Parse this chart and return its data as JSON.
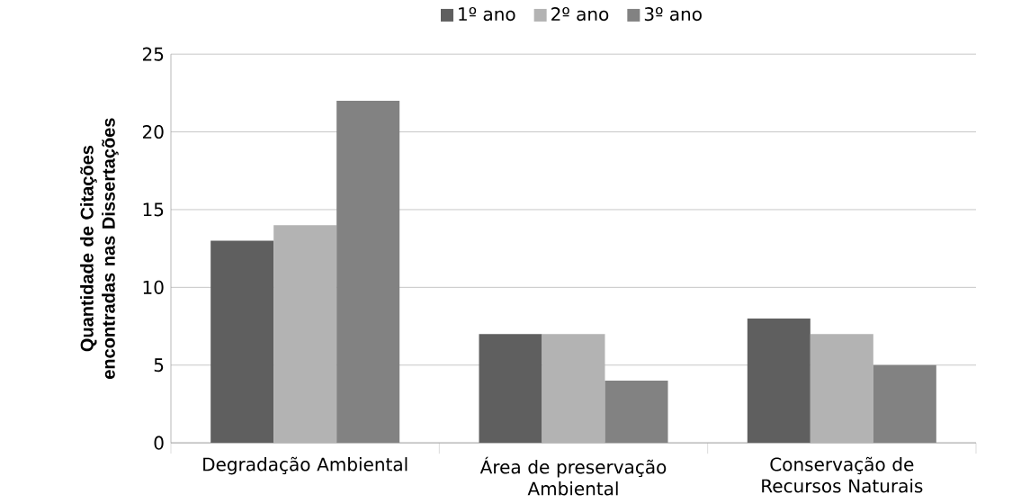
{
  "chart_data": {
    "type": "bar",
    "ylabel": "Quantidade de Citações encontradas nas Dissertações",
    "categories": [
      "Degradação Ambiental",
      "Área de preservação Ambiental",
      "Conservação de Recursos Naturais"
    ],
    "series": [
      {
        "name": "1º ano",
        "color": "#5f5f5f",
        "values": [
          13,
          7,
          8
        ]
      },
      {
        "name": "2º ano",
        "color": "#b3b3b3",
        "values": [
          14,
          7,
          7
        ]
      },
      {
        "name": "3º ano",
        "color": "#828282",
        "values": [
          22,
          4,
          5
        ]
      }
    ],
    "ylim": [
      0,
      25
    ],
    "yticks": [
      0,
      5,
      10,
      15,
      20,
      25
    ],
    "grid": "y",
    "legend": "top"
  }
}
